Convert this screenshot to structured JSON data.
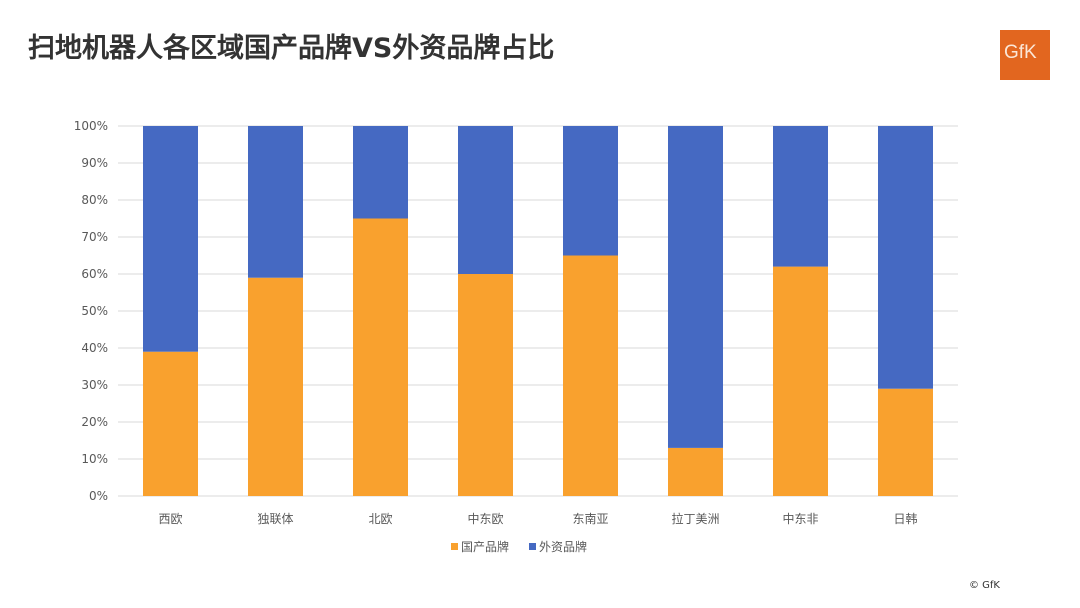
{
  "title": "扫地机器人各区域国产品牌VS外资品牌占比",
  "logo_text": "GfK",
  "copyright": "© GfK",
  "colors": {
    "domestic": "#f9a12e",
    "foreign": "#4569c2",
    "grid": "#d9d9d9"
  },
  "chart_data": {
    "type": "bar",
    "stacked": true,
    "percent": true,
    "categories": [
      "西欧",
      "独联体",
      "北欧",
      "中东欧",
      "东南亚",
      "拉丁美洲",
      "中东非",
      "日韩"
    ],
    "series": [
      {
        "name": "国产品牌",
        "values": [
          39,
          59,
          75,
          60,
          65,
          13,
          62,
          29
        ]
      },
      {
        "name": "外资品牌",
        "values": [
          61,
          41,
          25,
          40,
          35,
          87,
          38,
          71
        ]
      }
    ],
    "yticks": [
      "0%",
      "10%",
      "20%",
      "30%",
      "40%",
      "50%",
      "60%",
      "70%",
      "80%",
      "90%",
      "100%"
    ],
    "ylim": [
      0,
      100
    ],
    "grid": true,
    "legend": "bottom"
  }
}
